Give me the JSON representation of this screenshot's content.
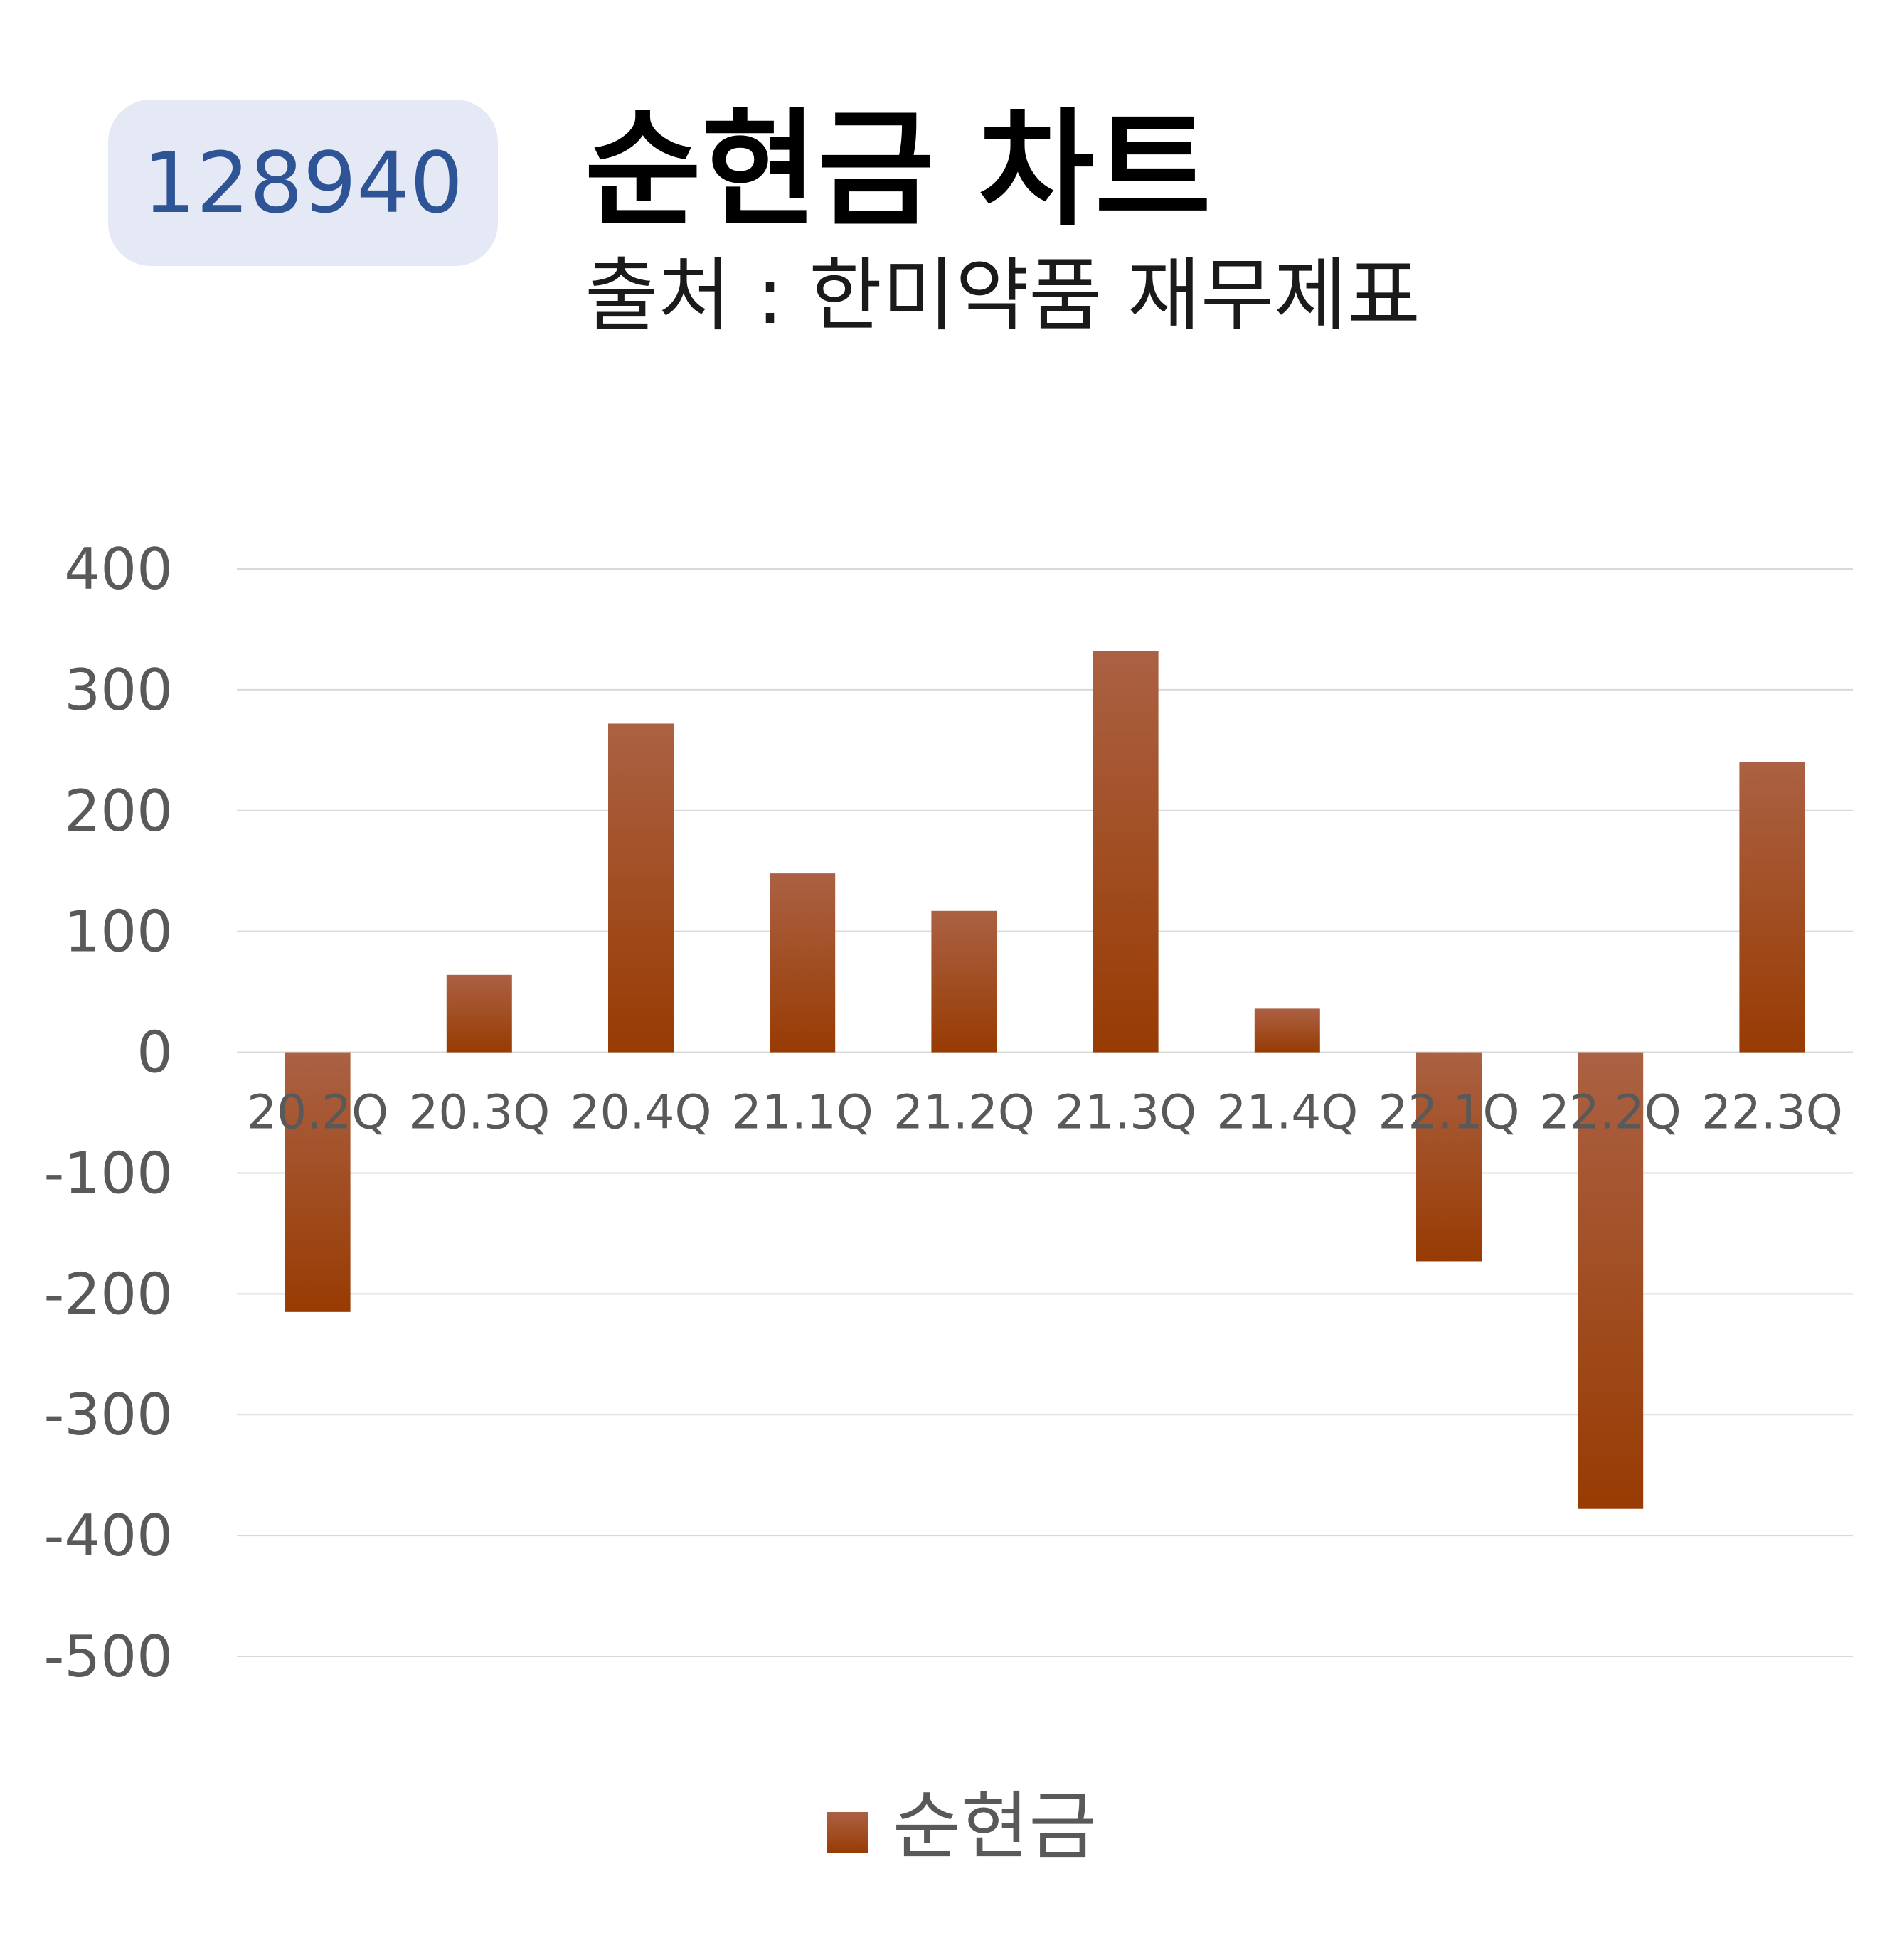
{
  "header": {
    "code": "128940",
    "title": "순현금 차트",
    "subtitle": "출처 : 한미약품 재무제표"
  },
  "colors": {
    "bar_top": "#ab6143",
    "bar_bottom": "#983b03",
    "grid": "#d9d9d9",
    "tick_text": "#595959",
    "badge_bg": "#e4e9f5",
    "badge_text": "#2f5496"
  },
  "chart_data": {
    "type": "bar",
    "categories": [
      "20.2Q",
      "20.3Q",
      "20.4Q",
      "21.1Q",
      "21.2Q",
      "21.3Q",
      "21.4Q",
      "22.1Q",
      "22.2Q",
      "22.3Q"
    ],
    "series": [
      {
        "name": "순현금",
        "values": [
          -215,
          64,
          272,
          148,
          117,
          332,
          36,
          -173,
          -378,
          240
        ]
      }
    ],
    "ylim": [
      -500,
      400
    ],
    "yticks": [
      400,
      300,
      200,
      100,
      0,
      -100,
      -200,
      -300,
      -400,
      -500
    ],
    "grid": true,
    "legend": "bottom-center"
  }
}
